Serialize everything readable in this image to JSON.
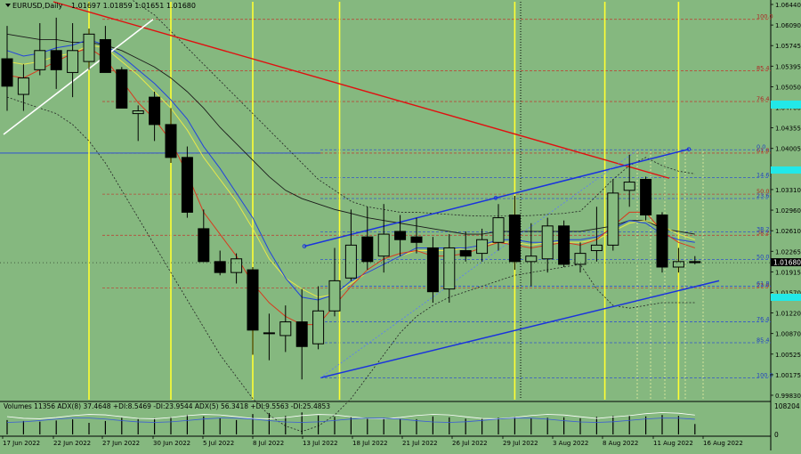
{
  "header": {
    "symbol_label": "EURUSD,Daily",
    "ohlc_text": "1.01697 1.01859 1.01651 1.01680",
    "triangle_icon": "triangle-down-icon"
  },
  "volume_header": "Volumes 11356  ADX(8) 37.4648 +DI:8.5469 -DI:23.9544  ADX(5) 56.3418 +DI:9.5563 -DI:25.4853",
  "colors": {
    "background": "#85b87f",
    "bull_candle": "#86bb80",
    "bear_candle": "#000000",
    "red_ma": "#d83a1e",
    "yellow_ma": "#e8e84a",
    "blue_ma": "#2244dd",
    "black_ma": "#1a1a1a",
    "trendline_red": "#e01010",
    "trendline_blue": "#1a33dd",
    "fib_red": "#b84a3a",
    "fib_blue": "#3355cc",
    "vline_yellow": "#ffff33",
    "current_price_tag": "#000000",
    "cyan_tag": "#22e8e8"
  },
  "chart_data": {
    "type": "candlestick",
    "title": "",
    "ylim": [
      0.9918,
      1.0644
    ],
    "y_ticks": [
      "1.06440",
      "1.06090",
      "1.05745",
      "1.05395",
      "1.05050",
      "1.04700",
      "1.04355",
      "1.04005",
      "1.03655",
      "1.03310",
      "1.02960",
      "1.02610",
      "1.02265",
      "1.01915",
      "1.01570",
      "1.01220",
      "1.00870",
      "1.00525",
      "1.00175",
      "0.99830"
    ],
    "current_price_label": "1.01680",
    "current_price": 1.0168,
    "x_labels": [
      "17 Jun 2022",
      "22 Jun 2022",
      "27 Jun 2022",
      "30 Jun 2022",
      "5 Jul 2022",
      "8 Jul 2022",
      "13 Jul 2022",
      "18 Jul 2022",
      "21 Jul 2022",
      "26 Jul 2022",
      "29 Jul 2022",
      "3 Aug 2022",
      "8 Aug 2022",
      "11 Aug 2022",
      "16 Aug 2022"
    ],
    "candles": [
      {
        "o": 1.054,
        "h": 1.06,
        "l": 1.0445,
        "c": 1.049
      },
      {
        "o": 1.0475,
        "h": 1.053,
        "l": 1.0445,
        "c": 1.0505
      },
      {
        "o": 1.052,
        "h": 1.0605,
        "l": 1.051,
        "c": 1.0555
      },
      {
        "o": 1.0555,
        "h": 1.0615,
        "l": 1.0485,
        "c": 1.052
      },
      {
        "o": 1.0515,
        "h": 1.0605,
        "l": 1.047,
        "c": 1.0555
      },
      {
        "o": 1.0535,
        "h": 1.0595,
        "l": 1.052,
        "c": 1.0585
      },
      {
        "o": 1.0575,
        "h": 1.06,
        "l": 1.0515,
        "c": 1.0515
      },
      {
        "o": 1.052,
        "h": 1.0525,
        "l": 1.045,
        "c": 1.045
      },
      {
        "o": 1.044,
        "h": 1.0455,
        "l": 1.039,
        "c": 1.0445
      },
      {
        "o": 1.047,
        "h": 1.048,
        "l": 1.039,
        "c": 1.042
      },
      {
        "o": 1.042,
        "h": 1.045,
        "l": 1.035,
        "c": 1.036
      },
      {
        "o": 1.036,
        "h": 1.038,
        "l": 1.025,
        "c": 1.026
      },
      {
        "o": 1.023,
        "h": 1.0265,
        "l": 1.017,
        "c": 1.017
      },
      {
        "o": 1.017,
        "h": 1.019,
        "l": 1.0145,
        "c": 1.015
      },
      {
        "o": 1.015,
        "h": 1.0185,
        "l": 1.013,
        "c": 1.0175
      },
      {
        "o": 1.0155,
        "h": 1.016,
        "l": 1.0,
        "c": 1.0045
      },
      {
        "o": 1.004,
        "h": 1.0075,
        "l": 0.999,
        "c": 1.004
      },
      {
        "o": 1.0035,
        "h": 1.009,
        "l": 1.0005,
        "c": 1.006
      },
      {
        "o": 1.006,
        "h": 1.012,
        "l": 0.9955,
        "c": 1.0015
      },
      {
        "o": 1.002,
        "h": 1.0125,
        "l": 1.001,
        "c": 1.008
      },
      {
        "o": 1.008,
        "h": 1.0195,
        "l": 1.007,
        "c": 1.0135
      },
      {
        "o": 1.014,
        "h": 1.0265,
        "l": 1.0135,
        "c": 1.02
      },
      {
        "o": 1.0215,
        "h": 1.027,
        "l": 1.0155,
        "c": 1.017
      },
      {
        "o": 1.018,
        "h": 1.0275,
        "l": 1.015,
        "c": 1.022
      },
      {
        "o": 1.0225,
        "h": 1.0255,
        "l": 1.018,
        "c": 1.021
      },
      {
        "o": 1.0215,
        "h": 1.025,
        "l": 1.0185,
        "c": 1.0205
      },
      {
        "o": 1.0195,
        "h": 1.0215,
        "l": 1.0095,
        "c": 1.0115
      },
      {
        "o": 1.012,
        "h": 1.022,
        "l": 1.0095,
        "c": 1.0195
      },
      {
        "o": 1.019,
        "h": 1.0225,
        "l": 1.017,
        "c": 1.018
      },
      {
        "o": 1.0185,
        "h": 1.023,
        "l": 1.017,
        "c": 1.021
      },
      {
        "o": 1.0205,
        "h": 1.0275,
        "l": 1.019,
        "c": 1.025
      },
      {
        "o": 1.0255,
        "h": 1.029,
        "l": 1.0155,
        "c": 1.017
      },
      {
        "o": 1.017,
        "h": 1.024,
        "l": 1.0125,
        "c": 1.018
      },
      {
        "o": 1.0175,
        "h": 1.025,
        "l": 1.015,
        "c": 1.0235
      },
      {
        "o": 1.0235,
        "h": 1.0245,
        "l": 1.016,
        "c": 1.0165
      },
      {
        "o": 1.0165,
        "h": 1.0205,
        "l": 1.015,
        "c": 1.0185
      },
      {
        "o": 1.019,
        "h": 1.027,
        "l": 1.017,
        "c": 1.02
      },
      {
        "o": 1.02,
        "h": 1.032,
        "l": 1.019,
        "c": 1.0295
      },
      {
        "o": 1.03,
        "h": 1.0365,
        "l": 1.027,
        "c": 1.0315
      },
      {
        "o": 1.032,
        "h": 1.0325,
        "l": 1.0245,
        "c": 1.0255
      },
      {
        "o": 1.0255,
        "h": 1.026,
        "l": 1.015,
        "c": 1.016
      },
      {
        "o": 1.016,
        "h": 1.0195,
        "l": 1.015,
        "c": 1.017
      },
      {
        "o": 1.017,
        "h": 1.018,
        "l": 1.0165,
        "c": 1.0168
      }
    ],
    "ma_red": [
      1.051,
      1.0505,
      1.052,
      1.0535,
      1.055,
      1.056,
      1.054,
      1.05,
      1.046,
      1.043,
      1.039,
      1.033,
      1.026,
      1.022,
      1.018,
      1.013,
      1.0095,
      1.007,
      1.0055,
      1.0055,
      1.009,
      1.0125,
      1.0155,
      1.0175,
      1.0185,
      1.019,
      1.018,
      1.018,
      1.0185,
      1.0195,
      1.0205,
      1.02,
      1.0195,
      1.02,
      1.0205,
      1.02,
      1.021,
      1.0235,
      1.026,
      1.026,
      1.0225,
      1.0205,
      1.0195
    ],
    "ma_yellow": [
      1.0535,
      1.053,
      1.0535,
      1.0545,
      1.055,
      1.0565,
      1.056,
      1.0535,
      1.051,
      1.048,
      1.045,
      1.041,
      1.036,
      1.032,
      1.028,
      1.023,
      1.0175,
      1.014,
      1.012,
      1.0105,
      1.011,
      1.013,
      1.015,
      1.0165,
      1.018,
      1.019,
      1.019,
      1.019,
      1.0195,
      1.02,
      1.0205,
      1.0205,
      1.02,
      1.0205,
      1.0205,
      1.0205,
      1.021,
      1.0225,
      1.024,
      1.0245,
      1.0235,
      1.022,
      1.021
    ],
    "ma_blue": [
      1.0555,
      1.0545,
      1.055,
      1.056,
      1.0565,
      1.0575,
      1.0565,
      1.0545,
      1.052,
      1.0495,
      1.0465,
      1.043,
      1.038,
      1.034,
      1.0295,
      1.025,
      1.019,
      1.014,
      1.0105,
      1.01,
      1.011,
      1.0135,
      1.015,
      1.0165,
      1.018,
      1.0195,
      1.0195,
      1.0195,
      1.0195,
      1.02,
      1.021,
      1.021,
      1.0205,
      1.0205,
      1.021,
      1.021,
      1.0215,
      1.023,
      1.0245,
      1.024,
      1.022,
      1.021,
      1.0205
    ],
    "ma_black": [
      1.0585,
      1.058,
      1.0575,
      1.0575,
      1.057,
      1.057,
      1.0565,
      1.0555,
      1.054,
      1.0525,
      1.0505,
      1.048,
      1.045,
      1.0415,
      1.0385,
      1.0355,
      1.0325,
      1.03,
      1.0285,
      1.0275,
      1.0265,
      1.0258,
      1.025,
      1.0245,
      1.024,
      1.0235,
      1.023,
      1.0225,
      1.022,
      1.022,
      1.0225,
      1.0225,
      1.0225,
      1.0225,
      1.0225,
      1.0225,
      1.023,
      1.0235,
      1.0245,
      1.0245,
      1.023,
      1.0225,
      1.022
    ],
    "bb_upper": [
      1.07,
      1.07,
      1.07,
      1.07,
      1.069,
      1.068,
      1.067,
      1.066,
      1.064,
      1.062,
      1.059,
      1.056,
      1.053,
      1.05,
      1.047,
      1.044,
      1.041,
      1.038,
      1.035,
      1.032,
      1.03,
      1.028,
      1.027,
      1.0265,
      1.026,
      1.026,
      1.0258,
      1.0256,
      1.0254,
      1.0253,
      1.0253,
      1.0253,
      1.0254,
      1.0256,
      1.0258,
      1.0262,
      1.029,
      1.032,
      1.0345,
      1.036,
      1.0345,
      1.0335,
      1.033
    ],
    "bb_lower": [
      1.047,
      1.046,
      1.045,
      1.044,
      1.042,
      1.039,
      1.035,
      1.03,
      1.025,
      1.02,
      1.015,
      1.01,
      1.005,
      1.0,
      0.996,
      0.992,
      0.989,
      0.987,
      0.986,
      0.987,
      0.989,
      0.992,
      0.996,
      1.0,
      1.004,
      1.007,
      1.009,
      1.0105,
      1.0115,
      1.0125,
      1.0135,
      1.0145,
      1.015,
      1.0155,
      1.016,
      1.0165,
      1.012,
      1.009,
      1.0085,
      1.009,
      1.0095,
      1.0095,
      1.0095
    ],
    "fib_levels": [
      {
        "label": "100.0",
        "price": 1.0612,
        "color": "red"
      },
      {
        "label": "85.4",
        "price": 1.0518,
        "color": "red"
      },
      {
        "label": "76.4",
        "price": 1.0462,
        "color": "red"
      },
      {
        "label": "61.8",
        "price": 1.0368,
        "color": "red"
      },
      {
        "label": "50.0",
        "price": 1.0293,
        "color": "red"
      },
      {
        "label": "38.2",
        "price": 1.0218,
        "color": "red"
      },
      {
        "label": "23.6",
        "price": 1.0122,
        "color": "red"
      },
      {
        "label": "0.0",
        "price": 1.0374,
        "color": "blue"
      },
      {
        "label": "14.6",
        "price": 1.0323,
        "color": "blue"
      },
      {
        "label": "23.6",
        "price": 1.0285,
        "color": "blue"
      },
      {
        "label": "38.2",
        "price": 1.0224,
        "color": "blue"
      },
      {
        "label": "50.0",
        "price": 1.0174,
        "color": "blue"
      },
      {
        "label": "61.8",
        "price": 1.0125,
        "color": "blue"
      },
      {
        "label": "76.4",
        "price": 1.006,
        "color": "blue"
      },
      {
        "label": "85.4",
        "price": 1.0022,
        "color": "blue"
      },
      {
        "label": "100.0",
        "price": 0.9958,
        "color": "blue"
      }
    ],
    "volumes": [
      0.62,
      0.58,
      0.55,
      0.6,
      0.65,
      0.5,
      0.58,
      0.72,
      0.66,
      0.7,
      0.75,
      0.85,
      0.78,
      0.7,
      0.62,
      0.88,
      0.92,
      0.8,
      0.95,
      0.82,
      0.76,
      0.74,
      0.7,
      0.72,
      0.68,
      0.66,
      0.78,
      0.74,
      0.68,
      0.7,
      0.72,
      0.76,
      0.7,
      0.72,
      0.74,
      0.7,
      0.76,
      0.8,
      0.82,
      0.78,
      0.84,
      0.8,
      0.45
    ],
    "vol_axis_labels": [
      "108204",
      "0"
    ]
  }
}
